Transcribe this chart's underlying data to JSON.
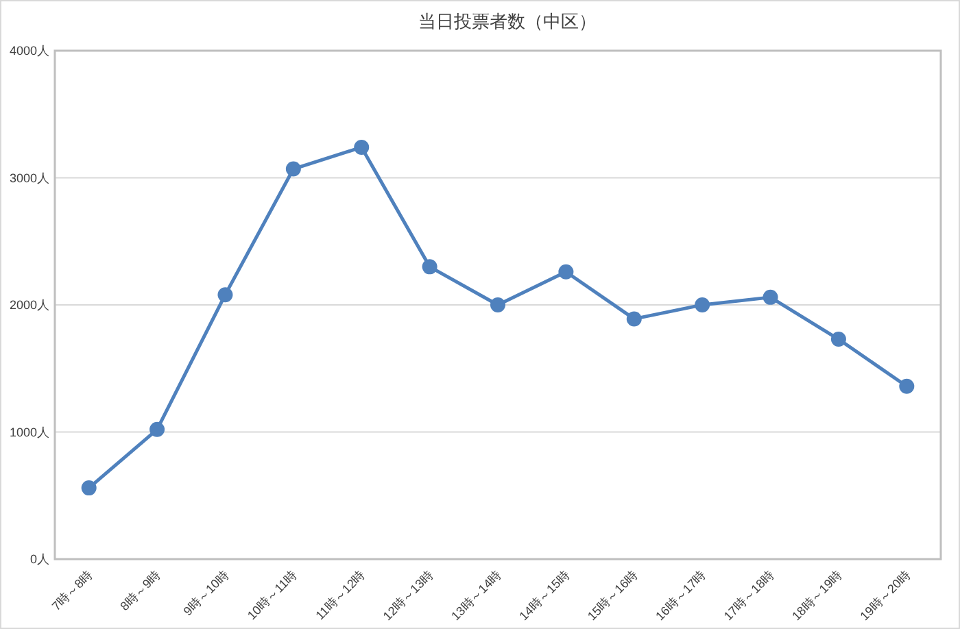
{
  "chart_data": {
    "type": "line",
    "title": "当日投票者数（中区）",
    "categories": [
      "7時～8時",
      "8時～9時",
      "9時～10時",
      "10時～11時",
      "11時～12時",
      "12時～13時",
      "13時～14時",
      "14時～15時",
      "15時～16時",
      "16時～17時",
      "17時～18時",
      "18時～19時",
      "19時～20時"
    ],
    "series": [
      {
        "color": "#4f81bd",
        "values": [
          560,
          1020,
          2080,
          3070,
          3240,
          2300,
          2000,
          2260,
          1890,
          2000,
          2060,
          1730,
          1360
        ]
      }
    ],
    "ylim": [
      0,
      4000
    ],
    "yticks": [
      {
        "value": 0,
        "label": "0人"
      },
      {
        "value": 1000,
        "label": "1000人"
      },
      {
        "value": 2000,
        "label": "2000人"
      },
      {
        "value": 3000,
        "label": "3000人"
      },
      {
        "value": 4000,
        "label": "4000人"
      }
    ],
    "grid": "y",
    "marker": "circle",
    "line_style": "solid"
  }
}
